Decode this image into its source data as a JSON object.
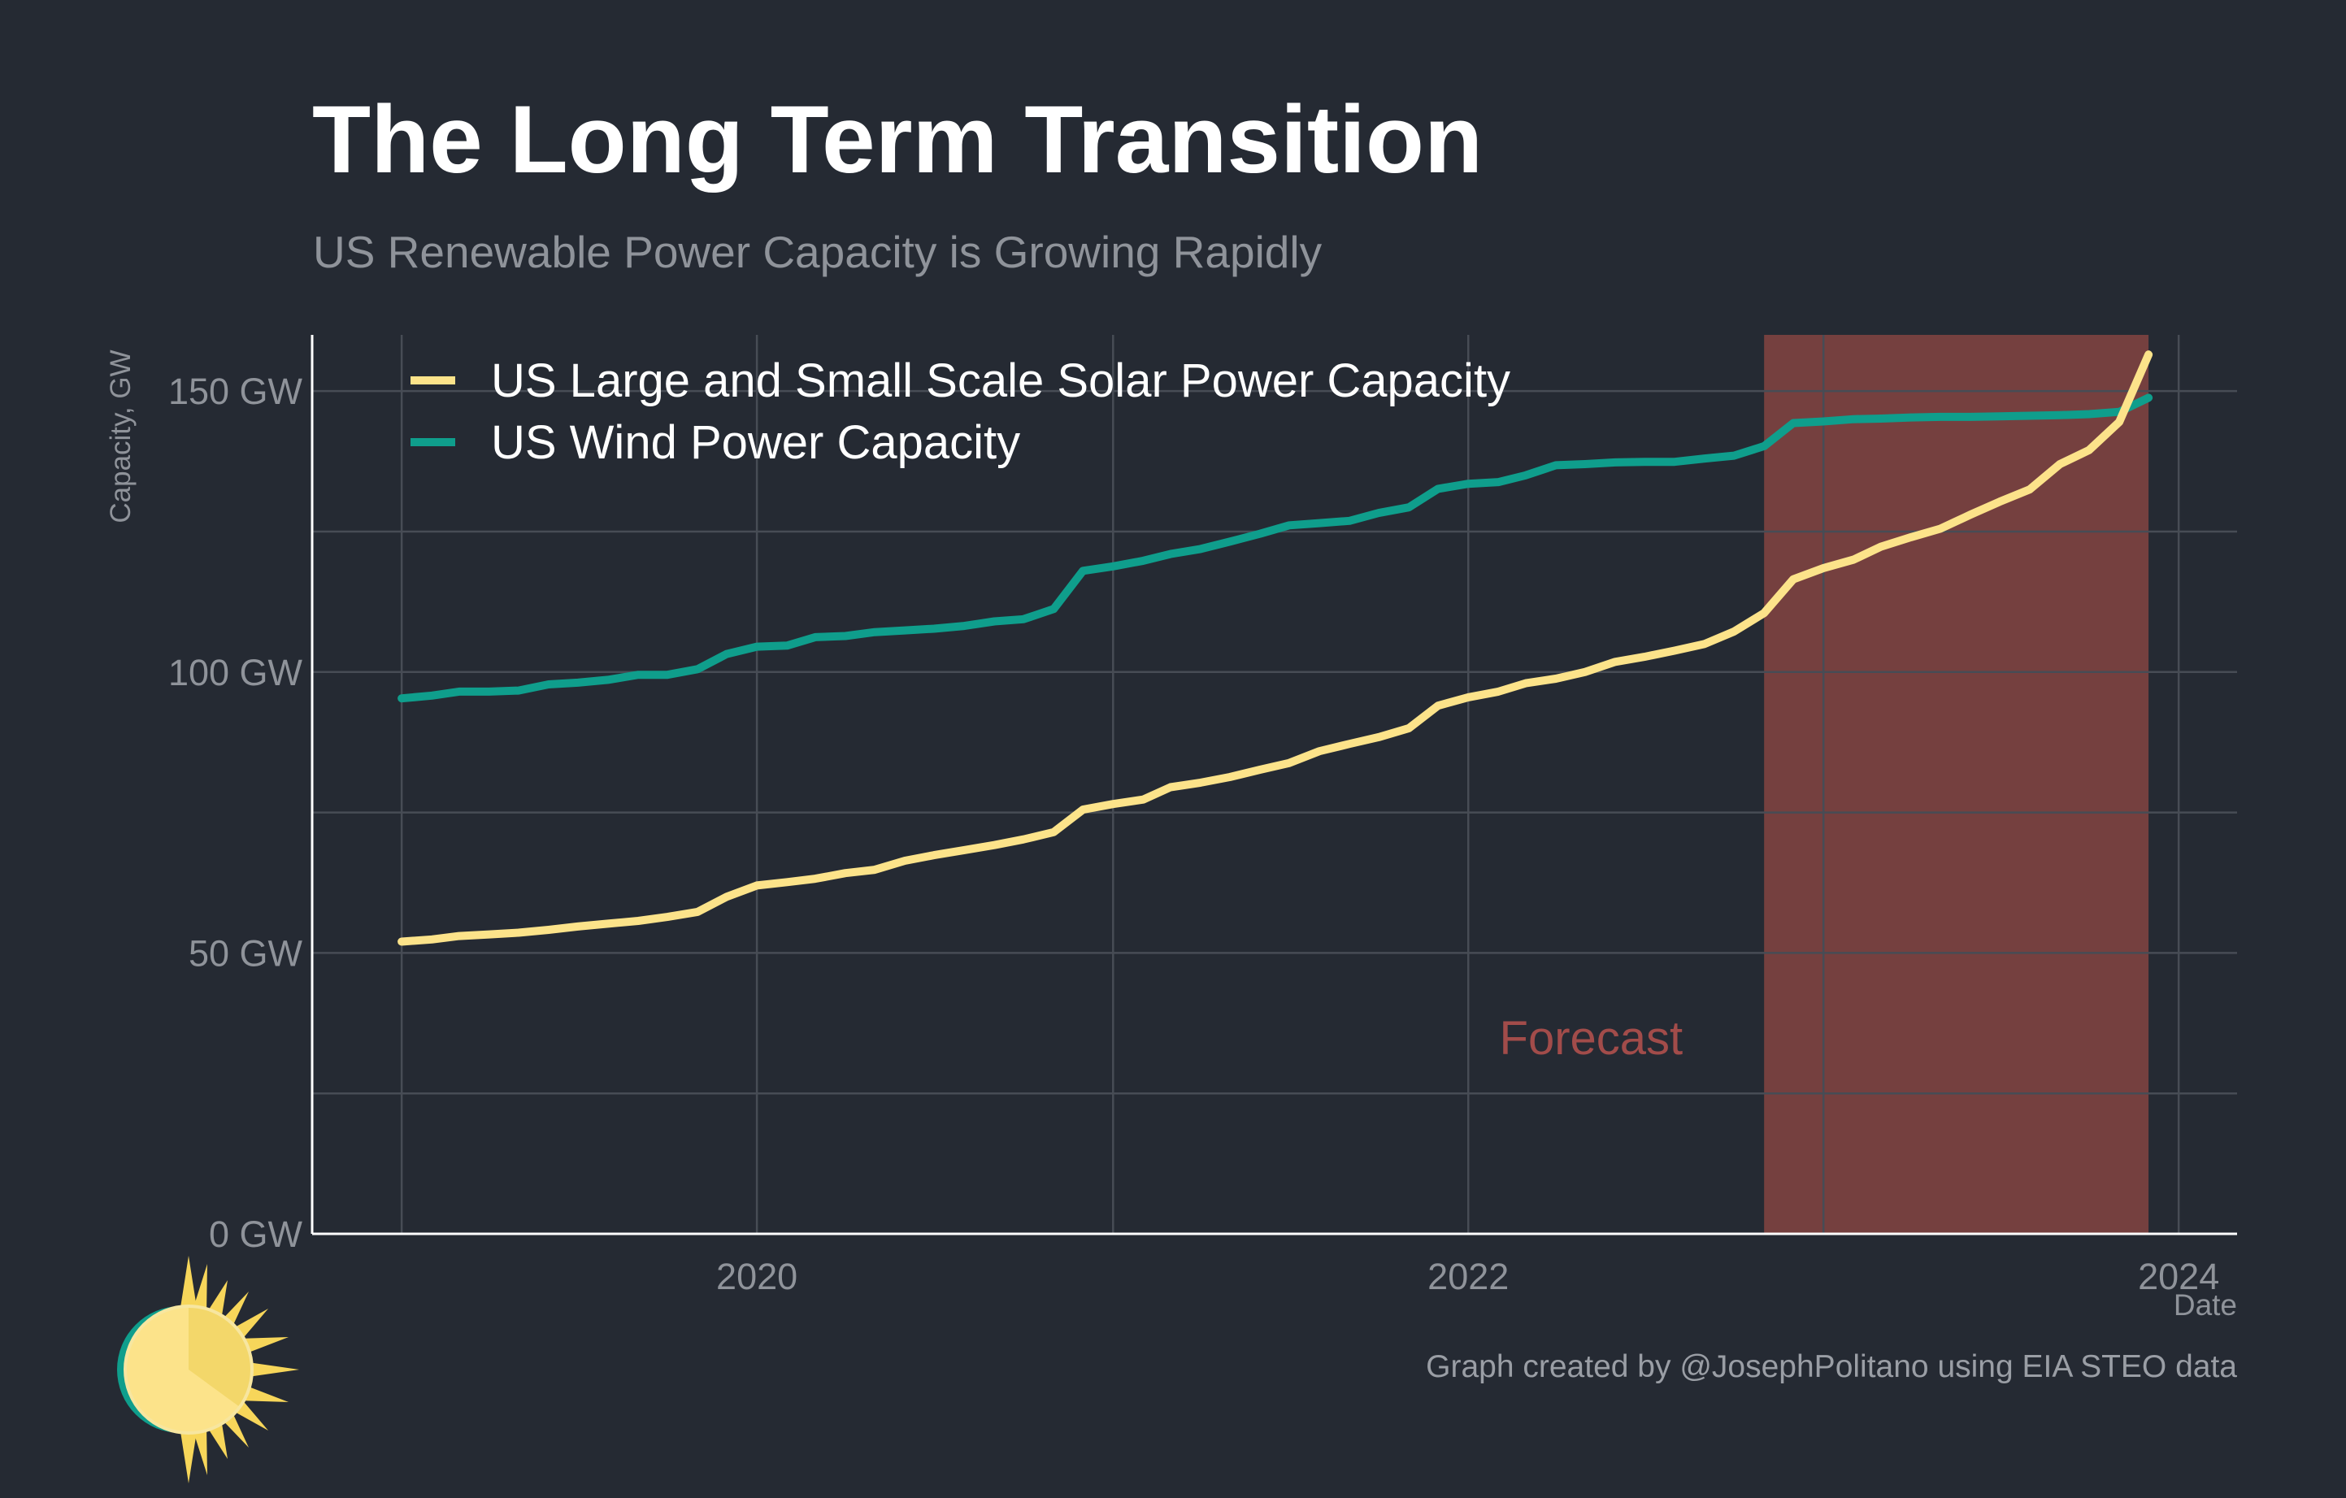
{
  "title": "The Long Term Transition",
  "subtitle": "US Renewable Power Capacity is Growing Rapidly",
  "caption": "Graph created by @JosephPolitano using EIA STEO data",
  "colors": {
    "background": "#252a33",
    "solar": "#fce38a",
    "wind": "#0f9e8c",
    "forecast_band": "#75403f",
    "forecast_text": "#a24c4a",
    "grid": "#474c55"
  },
  "chart_data": {
    "type": "line",
    "ylabel": "Capacity, GW",
    "xlabel": "Date",
    "ylim": [
      0,
      160
    ],
    "xlim": [
      "2018-10-01",
      "2024-03-01"
    ],
    "y_ticks": [
      {
        "value": 0,
        "label": "0 GW"
      },
      {
        "value": 50,
        "label": "50 GW"
      },
      {
        "value": 100,
        "label": "100 GW"
      },
      {
        "value": 150,
        "label": "150 GW"
      }
    ],
    "x_ticks": [
      {
        "value": "2020-01-01",
        "label": "2020"
      },
      {
        "value": "2022-01-01",
        "label": "2022"
      },
      {
        "value": "2024-01-01",
        "label": "2024"
      }
    ],
    "grid": true,
    "legend_position": "top-left",
    "forecast": {
      "label": "Forecast",
      "start": "2022-11-01",
      "end": "2023-12-01"
    },
    "x": [
      "2019-01",
      "2019-02",
      "2019-03",
      "2019-04",
      "2019-05",
      "2019-06",
      "2019-07",
      "2019-08",
      "2019-09",
      "2019-10",
      "2019-11",
      "2019-12",
      "2020-01",
      "2020-02",
      "2020-03",
      "2020-04",
      "2020-05",
      "2020-06",
      "2020-07",
      "2020-08",
      "2020-09",
      "2020-10",
      "2020-11",
      "2020-12",
      "2021-01",
      "2021-02",
      "2021-03",
      "2021-04",
      "2021-05",
      "2021-06",
      "2021-07",
      "2021-08",
      "2021-09",
      "2021-10",
      "2021-11",
      "2021-12",
      "2022-01",
      "2022-02",
      "2022-03",
      "2022-04",
      "2022-05",
      "2022-06",
      "2022-07",
      "2022-08",
      "2022-09",
      "2022-10",
      "2022-11",
      "2022-12",
      "2023-01",
      "2023-02",
      "2023-03",
      "2023-04",
      "2023-05",
      "2023-06",
      "2023-07",
      "2023-08",
      "2023-09",
      "2023-10",
      "2023-11",
      "2023-12"
    ],
    "series": [
      {
        "name": "US Large and Small Scale Solar Power Capacity",
        "color": "#fce38a",
        "values": [
          52.0,
          52.4,
          53.0,
          53.3,
          53.6,
          54.1,
          54.7,
          55.2,
          55.7,
          56.4,
          57.3,
          60.0,
          62.0,
          62.6,
          63.2,
          64.2,
          64.8,
          66.4,
          67.4,
          68.3,
          69.2,
          70.2,
          71.5,
          75.5,
          76.5,
          77.3,
          79.5,
          80.3,
          81.3,
          82.6,
          83.8,
          85.9,
          87.2,
          88.4,
          90.0,
          94.0,
          95.5,
          96.5,
          98.0,
          98.8,
          100.0,
          101.8,
          102.7,
          103.8,
          105.0,
          107.2,
          110.5,
          116.5,
          118.5,
          120.0,
          122.3,
          124.0,
          125.5,
          128.0,
          130.3,
          132.5,
          137.0,
          139.5,
          144.5,
          156.5
        ]
      },
      {
        "name": "US Wind Power Capacity",
        "color": "#0f9e8c",
        "values": [
          95.3,
          95.8,
          96.5,
          96.5,
          96.7,
          97.8,
          98.1,
          98.6,
          99.5,
          99.5,
          100.5,
          103.2,
          104.5,
          104.7,
          106.2,
          106.4,
          107.1,
          107.4,
          107.7,
          108.2,
          109.0,
          109.4,
          111.2,
          118.0,
          118.8,
          119.8,
          121.0,
          121.9,
          123.2,
          124.6,
          126.1,
          126.5,
          126.9,
          128.3,
          129.3,
          132.6,
          133.5,
          133.8,
          135.0,
          136.8,
          137.0,
          137.3,
          137.4,
          137.4,
          138.0,
          138.5,
          140.2,
          144.3,
          144.6,
          145.0,
          145.1,
          145.3,
          145.4,
          145.4,
          145.5,
          145.6,
          145.7,
          145.9,
          146.3,
          148.8
        ]
      }
    ]
  }
}
